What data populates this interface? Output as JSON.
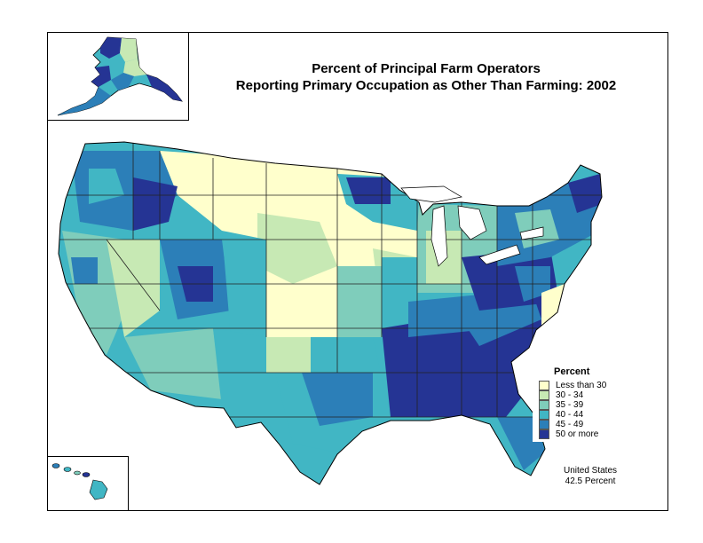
{
  "title_line1": "Percent of Principal Farm Operators",
  "title_line2": "Reporting Primary Occupation as Other Than Farming:  2002",
  "legend": {
    "title": "Percent",
    "items": [
      {
        "label": "Less than 30",
        "color": "#ffffcc"
      },
      {
        "label": "30 - 34",
        "color": "#c7e9b4"
      },
      {
        "label": "35 - 39",
        "color": "#7fcdbb"
      },
      {
        "label": "40 - 44",
        "color": "#41b6c4"
      },
      {
        "label": "45 - 49",
        "color": "#2c7fb8"
      },
      {
        "label": "50 or more",
        "color": "#253494"
      }
    ]
  },
  "summary": {
    "line1": "United States",
    "line2": "42.5 Percent"
  },
  "map_colors": {
    "outline": "#000000",
    "state_line": "#222222"
  }
}
